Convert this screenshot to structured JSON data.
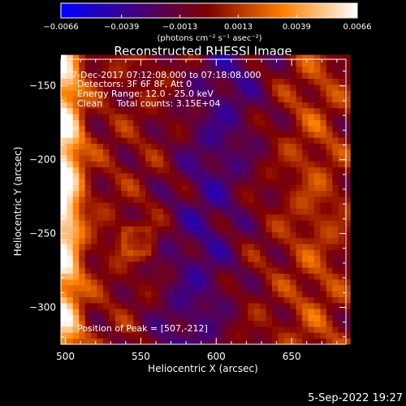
{
  "chart_data": {
    "type": "heatmap",
    "title": "Reconstructed RHESSI Image",
    "xlabel": "Heliocentric X (arcsec)",
    "ylabel": "Heliocentric Y (arcsec)",
    "xlim": [
      497,
      686
    ],
    "ylim": [
      -325,
      -132
    ],
    "xticks": [
      500,
      550,
      600,
      650
    ],
    "yticks": [
      -150,
      -200,
      -250,
      -300
    ],
    "xtick_labels": [
      "500",
      "550",
      "600",
      "650"
    ],
    "ytick_labels": [
      "−150",
      "−200",
      "−250",
      "−300"
    ],
    "colorbar": {
      "min": -0.0066,
      "max": 0.0066,
      "ticks": [
        -0.0066,
        -0.0039,
        -0.0013,
        0.0013,
        0.0039,
        0.0066
      ],
      "tick_labels": [
        "−0.0066",
        "−0.0039",
        "−0.0013",
        "0.0013",
        "0.0039",
        "0.0066"
      ],
      "unit_label": "(photons cm⁻² s⁻¹ asec⁻²)",
      "colors": [
        "#0000ff",
        "#400080",
        "#800000",
        "#ff8000",
        "#ffffff"
      ]
    },
    "annotations": {
      "time": "7-Dec-2017 07:12:08.000 to 07:18:08.000",
      "detectors": "Detectors: 3F 6F 8F, Att 0",
      "energy": "Energy Range: 12.0 - 25.0 keV",
      "clean": "Clean     Total counts: 3.15E+04",
      "peak": "Position of Peak = [507,-212]"
    },
    "peak": [
      507,
      -212
    ],
    "grid": false
  },
  "footer_date": "5-Sep-2022 19:27"
}
